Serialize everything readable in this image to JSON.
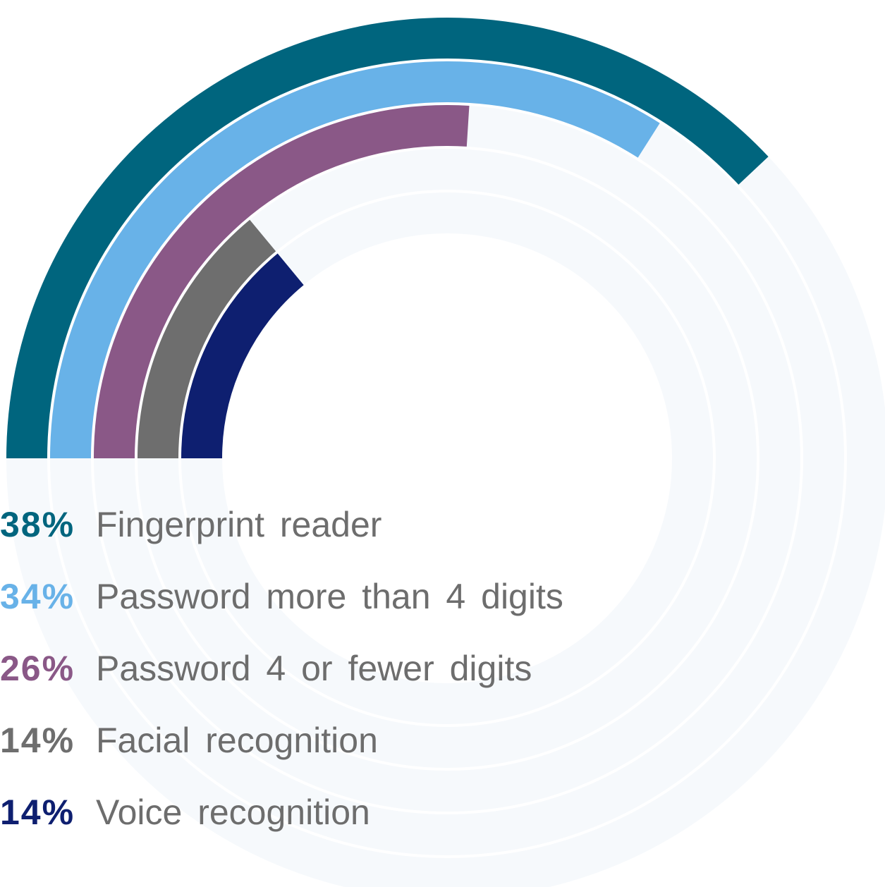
{
  "chart_data": {
    "type": "radial_bar",
    "categories": [
      "Fingerprint reader",
      "Password more than 4 digits",
      "Password 4 or fewer digits",
      "Facial recognition",
      "Voice recognition"
    ],
    "values": [
      38,
      34,
      26,
      14,
      14
    ],
    "value_labels": [
      "38%",
      "34%",
      "26%",
      "14%",
      "14%"
    ],
    "colors": [
      "#00657e",
      "#68b2e8",
      "#8a5887",
      "#6e6e6e",
      "#0e1f70"
    ],
    "ylim": [
      0,
      100
    ]
  }
}
